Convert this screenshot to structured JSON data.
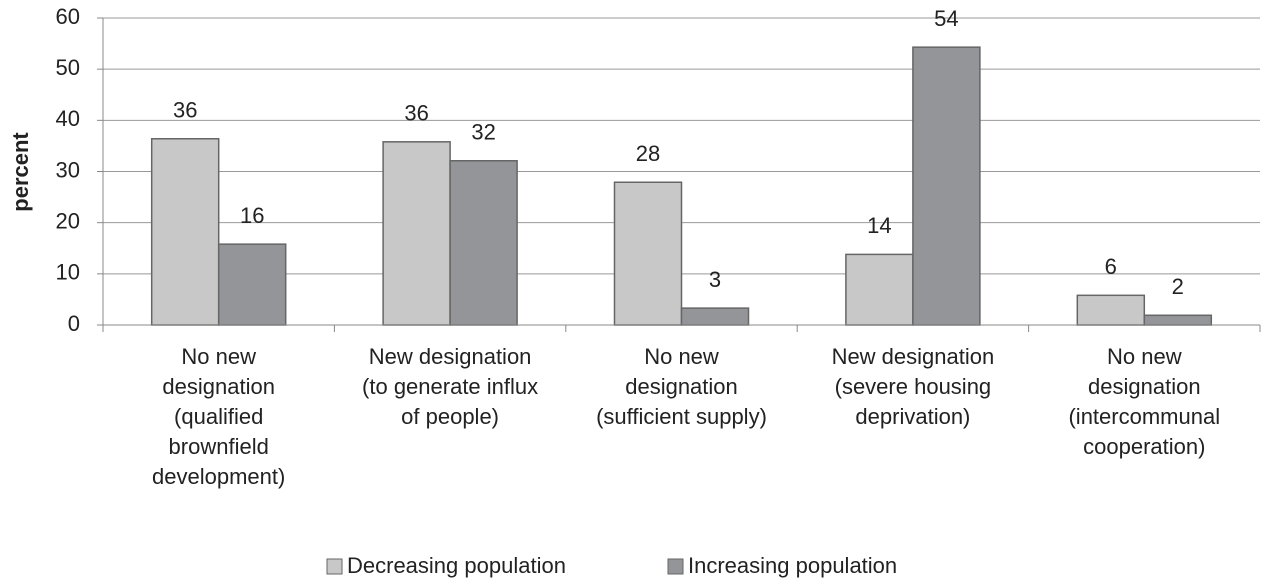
{
  "chart_data": {
    "type": "bar",
    "y_label": "percent",
    "categories": [
      [
        "No new",
        "designation",
        "(qualified",
        "brownfield",
        "development)"
      ],
      [
        "New designation",
        "(to generate influx",
        "of people)"
      ],
      [
        "No new",
        "designation",
        "(sufficient supply)"
      ],
      [
        "New designation",
        "(severe housing",
        "deprivation)"
      ],
      [
        "No new",
        "designation",
        "(intercommunal",
        "cooperation)"
      ]
    ],
    "series": [
      {
        "name": "Decreasing population",
        "color": "#c8c8c8",
        "values": [
          36.4,
          35.8,
          27.9,
          13.8,
          5.8
        ],
        "value_labels": [
          "36",
          "36",
          "28",
          "14",
          "6"
        ]
      },
      {
        "name": "Increasing population",
        "color": "#939598",
        "values": [
          15.8,
          32.1,
          3.3,
          54.3,
          1.9
        ],
        "value_labels": [
          "16",
          "32",
          "3",
          "54",
          "2"
        ]
      }
    ],
    "ylim": [
      0,
      60
    ],
    "yticks": [
      0,
      10,
      20,
      30,
      40,
      50,
      60
    ],
    "grid": true,
    "legend": "bottom"
  }
}
